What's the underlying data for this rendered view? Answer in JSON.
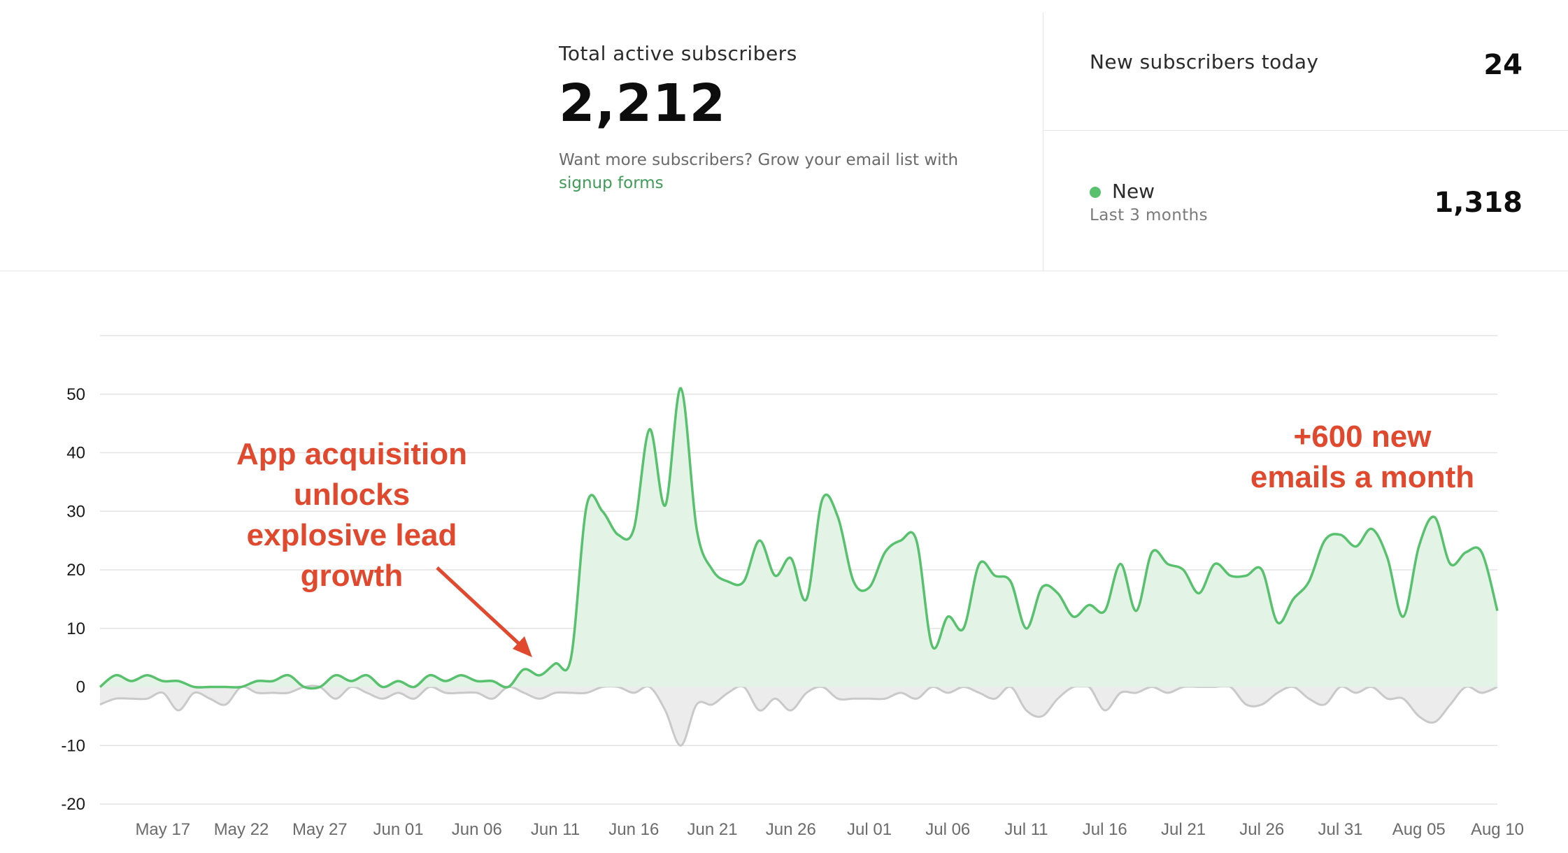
{
  "summary": {
    "total_label": "Total active subscribers",
    "total_value": "2,212",
    "hint_text": "Want more subscribers? Grow your email list with ",
    "hint_link": "signup forms"
  },
  "today": {
    "label": "New subscribers today",
    "value": "24"
  },
  "new_metric": {
    "label": "New",
    "sublabel": "Last 3 months",
    "value": "1,318",
    "color": "#57c16d"
  },
  "annotations": {
    "left": [
      "App acquisition",
      "unlocks",
      "explosive lead",
      "growth"
    ],
    "right": [
      "+600 new",
      "emails a month"
    ],
    "color": "#e0492d"
  },
  "chart_data": {
    "type": "area",
    "x": [
      "May 13",
      "May 14",
      "May 15",
      "May 16",
      "May 17",
      "May 18",
      "May 19",
      "May 20",
      "May 21",
      "May 22",
      "May 23",
      "May 24",
      "May 25",
      "May 26",
      "May 27",
      "May 28",
      "May 29",
      "May 30",
      "May 31",
      "Jun 01",
      "Jun 02",
      "Jun 03",
      "Jun 04",
      "Jun 05",
      "Jun 06",
      "Jun 07",
      "Jun 08",
      "Jun 09",
      "Jun 10",
      "Jun 11",
      "Jun 12",
      "Jun 13",
      "Jun 14",
      "Jun 15",
      "Jun 16",
      "Jun 17",
      "Jun 18",
      "Jun 19",
      "Jun 20",
      "Jun 21",
      "Jun 22",
      "Jun 23",
      "Jun 24",
      "Jun 25",
      "Jun 26",
      "Jun 27",
      "Jun 28",
      "Jun 29",
      "Jun 30",
      "Jul 01",
      "Jul 02",
      "Jul 03",
      "Jul 04",
      "Jul 05",
      "Jul 06",
      "Jul 07",
      "Jul 08",
      "Jul 09",
      "Jul 10",
      "Jul 11",
      "Jul 12",
      "Jul 13",
      "Jul 14",
      "Jul 15",
      "Jul 16",
      "Jul 17",
      "Jul 18",
      "Jul 19",
      "Jul 20",
      "Jul 21",
      "Jul 22",
      "Jul 23",
      "Jul 24",
      "Jul 25",
      "Jul 26",
      "Jul 27",
      "Jul 28",
      "Jul 29",
      "Jul 30",
      "Jul 31",
      "Aug 01",
      "Aug 02",
      "Aug 03",
      "Aug 04",
      "Aug 05",
      "Aug 06",
      "Aug 07",
      "Aug 08",
      "Aug 09",
      "Aug 10"
    ],
    "x_ticks": [
      "May 17",
      "May 22",
      "May 27",
      "Jun 01",
      "Jun 06",
      "Jun 11",
      "Jun 16",
      "Jun 21",
      "Jun 26",
      "Jul 01",
      "Jul 06",
      "Jul 11",
      "Jul 16",
      "Jul 21",
      "Jul 26",
      "Jul 31",
      "Aug 05",
      "Aug 10"
    ],
    "series": [
      {
        "values": [
          0,
          2,
          1,
          2,
          1,
          1,
          0,
          0,
          0,
          0,
          1,
          1,
          2,
          0,
          0,
          2,
          1,
          2,
          0,
          1,
          0,
          2,
          1,
          2,
          1,
          1,
          0,
          3,
          2,
          4,
          5,
          31,
          30,
          26,
          27,
          44,
          31,
          51,
          27,
          20,
          18,
          18,
          25,
          19,
          22,
          15,
          32,
          29,
          18,
          17,
          23,
          25,
          25,
          7,
          12,
          10,
          21,
          19,
          18,
          10,
          17,
          16,
          12,
          14,
          13,
          21,
          13,
          23,
          21,
          20,
          16,
          21,
          19,
          19,
          20,
          11,
          15,
          18,
          25,
          26,
          24,
          27,
          22,
          12,
          24,
          29,
          21,
          23,
          23,
          13
        ],
        "color": "#57c16d",
        "fill": "#e3f4e7"
      },
      {
        "values": [
          -3,
          -2,
          -2,
          -2,
          -1,
          -4,
          -1,
          -2,
          -3,
          0,
          -1,
          -1,
          -1,
          0,
          0,
          -2,
          0,
          -1,
          -2,
          -1,
          -2,
          0,
          -1,
          -1,
          -1,
          -2,
          0,
          -1,
          -2,
          -1,
          -1,
          -1,
          0,
          0,
          -1,
          0,
          -4,
          -10,
          -3,
          -3,
          -1,
          0,
          -4,
          -2,
          -4,
          -1,
          0,
          -2,
          -2,
          -2,
          -2,
          -1,
          -2,
          0,
          -1,
          0,
          -1,
          -2,
          0,
          -4,
          -5,
          -2,
          0,
          0,
          -4,
          -1,
          -1,
          0,
          -1,
          0,
          0,
          0,
          0,
          -3,
          -3,
          -1,
          0,
          -2,
          -3,
          0,
          -1,
          0,
          -2,
          -2,
          -5,
          -6,
          -3,
          0,
          -1,
          0
        ],
        "color": "#c9c9c9",
        "fill": "#ececec"
      }
    ],
    "yticks": [
      50,
      40,
      30,
      20,
      10,
      0,
      -10,
      -20
    ],
    "ylim": [
      -20,
      60
    ],
    "grid": true,
    "legend": "none"
  }
}
